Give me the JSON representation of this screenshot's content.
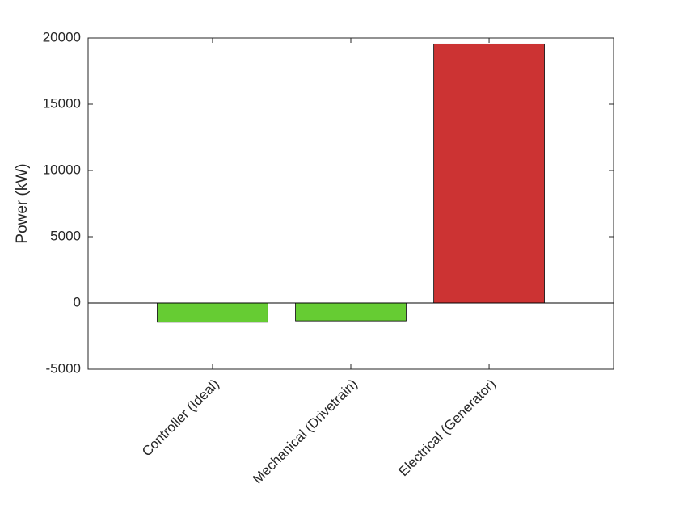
{
  "chart_data": {
    "type": "bar",
    "ylabel": "Power (kW)",
    "categories": [
      "Controller (Ideal)",
      "Mechanical (Drivetrain)",
      "Electrical (Generator)"
    ],
    "values": [
      -1450,
      -1350,
      19550
    ],
    "colors": [
      "#66cc33",
      "#66cc33",
      "#cc3333"
    ],
    "ylim": [
      -5000,
      20000
    ],
    "yticks": [
      -5000,
      0,
      5000,
      10000,
      15000,
      20000
    ],
    "grid": false
  }
}
